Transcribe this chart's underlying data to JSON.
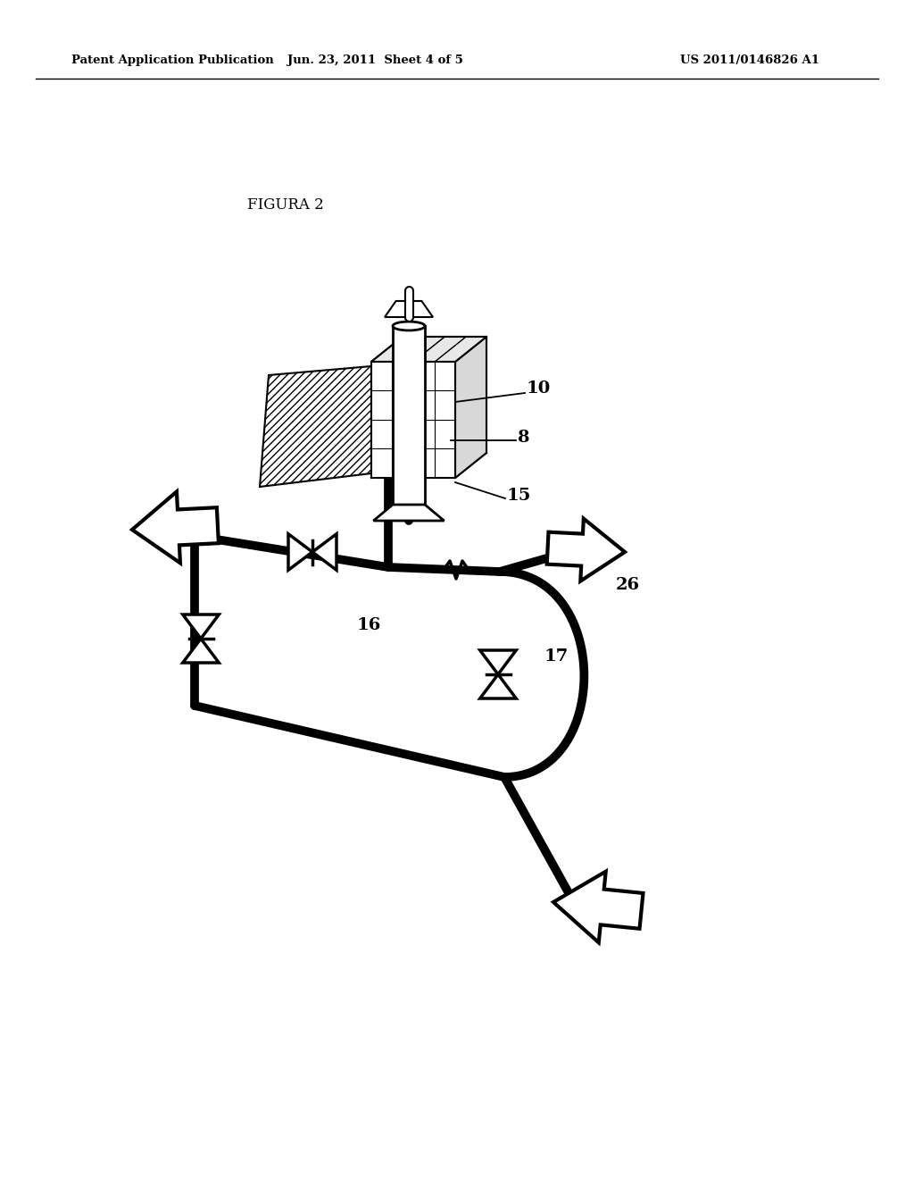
{
  "header_left": "Patent Application Publication",
  "header_center": "Jun. 23, 2011  Sheet 4 of 5",
  "header_right": "US 2011/0146826 A1",
  "figure_title": "FIGURA 2",
  "background": "#ffffff",
  "pipe_lw": 7.0,
  "pipe_color": "#000000"
}
